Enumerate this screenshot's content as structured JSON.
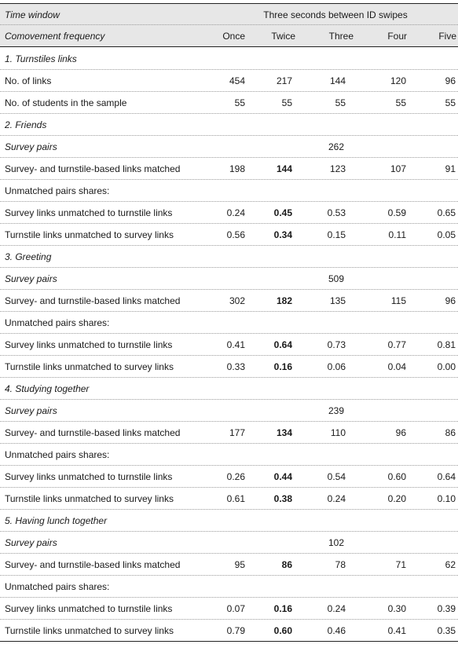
{
  "header": {
    "time_window_label": "Time window",
    "time_window_value": "Three seconds between ID swipes",
    "frequency_label": "Comovement frequency",
    "columns": [
      "Once",
      "Twice",
      "Three",
      "Four",
      "Five"
    ]
  },
  "sections": [
    {
      "title": "1. Turnstiles links",
      "rows": [
        {
          "label": "No. of links",
          "values": [
            "454",
            "217",
            "144",
            "120",
            "96"
          ]
        },
        {
          "label": "No. of students in the sample",
          "values": [
            "55",
            "55",
            "55",
            "55",
            "55"
          ]
        }
      ]
    },
    {
      "title": "2. Friends",
      "survey_pairs_label": "Survey pairs",
      "survey_pairs_value": "262",
      "matched": {
        "label": "Survey- and turnstile-based links matched",
        "values": [
          "198",
          "144",
          "123",
          "107",
          "91"
        ]
      },
      "unmatched_label": "Unmatched pairs shares:",
      "survey_unmatched": {
        "label": "Survey links unmatched to turnstile links",
        "values": [
          "0.24",
          "0.45",
          "0.53",
          "0.59",
          "0.65"
        ]
      },
      "turnstile_unmatched": {
        "label": "Turnstile links unmatched to survey links",
        "values": [
          "0.56",
          "0.34",
          "0.15",
          "0.11",
          "0.05"
        ]
      }
    },
    {
      "title": "3. Greeting",
      "survey_pairs_label": "Survey pairs",
      "survey_pairs_value": "509",
      "matched": {
        "label": "Survey- and turnstile-based links matched",
        "values": [
          "302",
          "182",
          "135",
          "115",
          "96"
        ]
      },
      "unmatched_label": "Unmatched pairs shares:",
      "survey_unmatched": {
        "label": "Survey links unmatched to turnstile links",
        "values": [
          "0.41",
          "0.64",
          "0.73",
          "0.77",
          "0.81"
        ]
      },
      "turnstile_unmatched": {
        "label": "Turnstile links unmatched to survey links",
        "values": [
          "0.33",
          "0.16",
          "0.06",
          "0.04",
          "0.00"
        ]
      }
    },
    {
      "title": "4. Studying together",
      "survey_pairs_label": "Survey pairs",
      "survey_pairs_value": "239",
      "matched": {
        "label": "Survey- and turnstile-based links matched",
        "values": [
          "177",
          "134",
          "110",
          "96",
          "86"
        ]
      },
      "unmatched_label": "Unmatched pairs shares:",
      "survey_unmatched": {
        "label": "Survey links unmatched to turnstile links",
        "values": [
          "0.26",
          "0.44",
          "0.54",
          "0.60",
          "0.64"
        ]
      },
      "turnstile_unmatched": {
        "label": "Turnstile links unmatched to survey links",
        "values": [
          "0.61",
          "0.38",
          "0.24",
          "0.20",
          "0.10"
        ]
      }
    },
    {
      "title": "5. Having lunch together",
      "survey_pairs_label": "Survey pairs",
      "survey_pairs_value": "102",
      "matched": {
        "label": "Survey- and turnstile-based links matched",
        "values": [
          "95",
          "86",
          "78",
          "71",
          "62"
        ]
      },
      "unmatched_label": "Unmatched pairs shares:",
      "survey_unmatched": {
        "label": "Survey links unmatched to turnstile links",
        "values": [
          "0.07",
          "0.16",
          "0.24",
          "0.30",
          "0.39"
        ]
      },
      "turnstile_unmatched": {
        "label": "Turnstile links unmatched to survey links",
        "values": [
          "0.79",
          "0.60",
          "0.46",
          "0.41",
          "0.35"
        ]
      }
    }
  ],
  "colors": {
    "header_shade": "#e7e7e7",
    "rule": "#222222",
    "dotted_rule": "#9a9a9a"
  }
}
